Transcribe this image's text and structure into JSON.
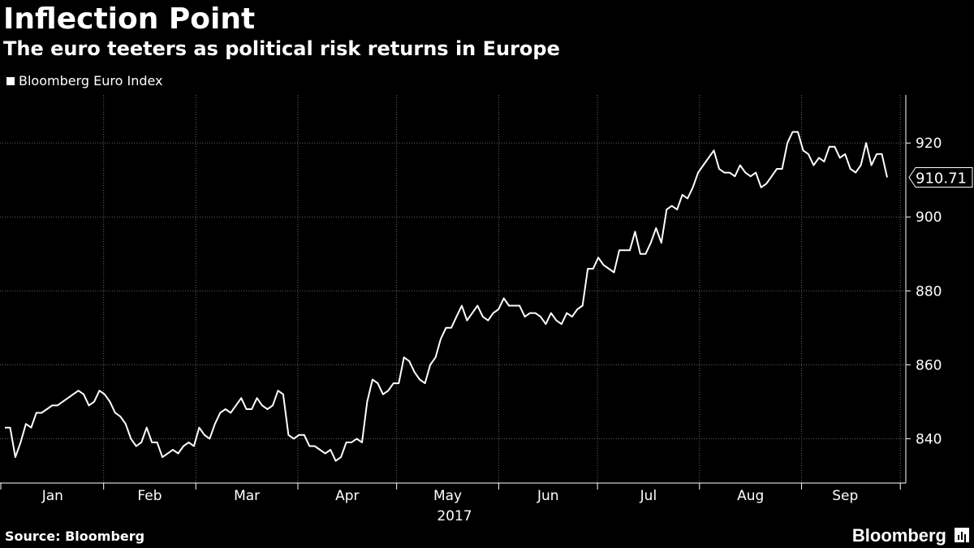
{
  "header": {
    "title": "Inflection Point",
    "subtitle": "The euro teeters as political risk returns in Europe"
  },
  "footer": {
    "source": "Source: Bloomberg",
    "brand": "Bloomberg"
  },
  "colors": {
    "background": "#000000",
    "line": "#ffffff",
    "grid": "#666666",
    "text": "#ffffff"
  },
  "chart_data": {
    "type": "line",
    "series": [
      {
        "name": "Bloomberg Euro Index",
        "x_start": "2017-01-02",
        "x_end": "2017-09-27",
        "values": [
          843,
          843,
          835,
          839,
          844,
          843,
          847,
          847,
          848,
          849,
          849,
          850,
          851,
          852,
          853,
          852,
          849,
          850,
          853,
          852,
          850,
          847,
          846,
          844,
          840,
          838,
          839,
          843,
          839,
          839,
          835,
          836,
          837,
          836,
          838,
          839,
          838,
          843,
          841,
          840,
          844,
          847,
          848,
          847,
          849,
          851,
          848,
          848,
          851,
          849,
          848,
          849,
          853,
          852,
          841,
          840,
          841,
          841,
          838,
          838,
          837,
          836,
          837,
          834,
          835,
          839,
          839,
          840,
          839,
          850,
          856,
          855,
          852,
          853,
          855,
          855,
          862,
          861,
          858,
          856,
          855,
          860,
          862,
          867,
          870,
          870,
          873,
          876,
          872,
          874,
          876,
          873,
          872,
          874,
          875,
          878,
          876,
          876,
          876,
          873,
          874,
          874,
          873,
          871,
          874,
          872,
          871,
          874,
          873,
          875,
          876,
          886,
          886,
          889,
          887,
          886,
          885,
          891,
          891,
          891,
          896,
          890,
          890,
          893,
          897,
          893,
          902,
          903,
          902,
          906,
          905,
          908,
          912,
          914,
          916,
          918,
          913,
          912,
          912,
          911,
          914,
          912,
          911,
          912,
          908,
          909,
          911,
          913,
          913,
          920,
          923,
          923,
          918,
          917,
          914,
          916,
          915,
          919,
          919,
          916,
          917,
          913,
          912,
          914,
          920,
          914,
          917,
          917,
          910.71
        ]
      }
    ],
    "x_labels": [
      "Jan",
      "Feb",
      "Mar",
      "Apr",
      "May",
      "Jun",
      "Jul",
      "Aug",
      "Sep"
    ],
    "x_year_label": "2017",
    "y_ticks": [
      840,
      860,
      880,
      900,
      920
    ],
    "ylim": [
      828,
      933
    ],
    "last_value_label": "910.71",
    "grid": true,
    "y_axis_position": "right"
  }
}
